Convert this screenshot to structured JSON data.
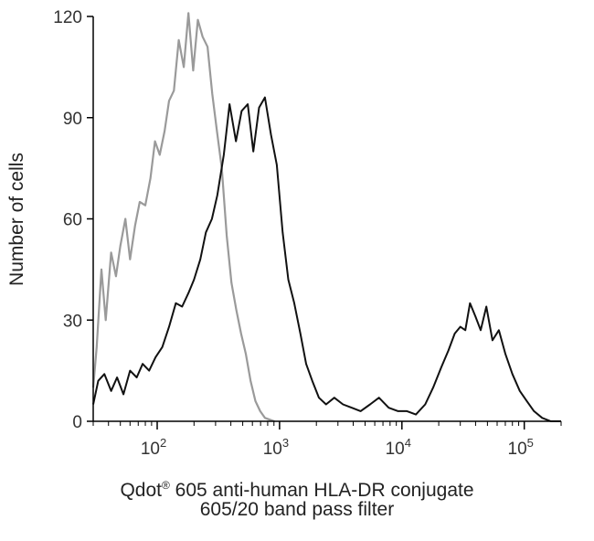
{
  "chart_data": {
    "type": "line",
    "title": "",
    "ylabel": "Number of cells",
    "xlabel": {
      "line1_prefix": "Qdot",
      "line1_reg": "®",
      "line1_suffix": " 605 anti-human HLA-DR conjugate",
      "line2": "605/20 band pass filter"
    },
    "x_scale": "log",
    "xlim": [
      30,
      200000
    ],
    "ylim": [
      0,
      120
    ],
    "y_ticks": [
      "0",
      "30",
      "60",
      "90",
      "120"
    ],
    "y_tick_values": [
      0,
      30,
      60,
      90,
      120
    ],
    "x_ticks": [
      {
        "value": 100,
        "base": "10",
        "exp": "2"
      },
      {
        "value": 1000,
        "base": "10",
        "exp": "3"
      },
      {
        "value": 10000,
        "base": "10",
        "exp": "4"
      },
      {
        "value": 100000,
        "base": "10",
        "exp": "5"
      }
    ],
    "grid": false,
    "legend": "none",
    "series": [
      {
        "color": "#9a9a9a",
        "x": [
          30,
          32,
          35,
          38,
          42,
          46,
          50,
          55,
          60,
          66,
          72,
          80,
          88,
          96,
          105,
          115,
          125,
          137,
          150,
          165,
          180,
          197,
          215,
          235,
          258,
          282,
          308,
          337,
          370,
          405,
          443,
          485,
          530,
          580,
          635,
          695,
          760,
          830,
          910
        ],
        "y": [
          10,
          22,
          45,
          30,
          50,
          43,
          52,
          60,
          48,
          58,
          65,
          64,
          72,
          83,
          79,
          86,
          95,
          98,
          113,
          105,
          121,
          104,
          119,
          114,
          111,
          97,
          86,
          75,
          55,
          41,
          33,
          26,
          20,
          12,
          6,
          3,
          1,
          0.5,
          0
        ]
      },
      {
        "color": "#111111",
        "x": [
          30,
          33,
          37,
          42,
          47,
          53,
          60,
          68,
          76,
          86,
          97,
          110,
          125,
          142,
          160,
          180,
          200,
          225,
          250,
          280,
          310,
          350,
          390,
          440,
          490,
          550,
          610,
          680,
          760,
          850,
          950,
          1060,
          1180,
          1320,
          1480,
          1650,
          1850,
          2100,
          2400,
          2800,
          3300,
          3900,
          4600,
          5500,
          6500,
          7800,
          9300,
          11000,
          13000,
          15500,
          18000,
          21000,
          24000,
          27000,
          30000,
          33000,
          36000,
          40000,
          44000,
          49000,
          55000,
          62000,
          70000,
          80000,
          92000,
          105000,
          120000,
          140000,
          165000,
          200000
        ],
        "y": [
          5,
          12,
          14,
          9,
          13,
          8,
          15,
          13,
          17,
          15,
          19,
          22,
          28,
          35,
          34,
          38,
          42,
          48,
          56,
          60,
          67,
          79,
          94,
          83,
          92,
          94,
          80,
          93,
          96,
          85,
          76,
          56,
          42,
          35,
          26,
          17,
          12,
          7,
          5,
          7,
          5,
          4,
          3,
          5,
          7,
          4,
          3,
          3,
          2,
          5,
          10,
          16,
          21,
          26,
          28,
          27,
          35,
          31,
          27,
          34,
          24,
          27,
          20,
          14,
          9,
          6,
          3,
          1,
          0,
          0
        ]
      }
    ]
  }
}
